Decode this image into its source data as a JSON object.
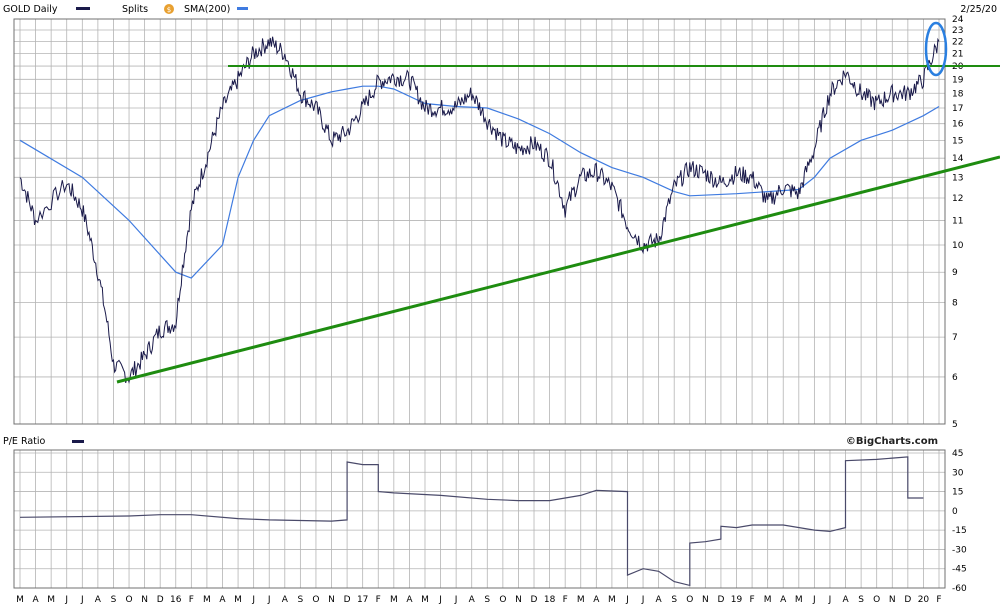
{
  "header": {
    "ticker_label": "GOLD Daily",
    "splits_label": "Splits",
    "splits_icon": "$",
    "sma_label": "SMA(200)",
    "date": "2/25/20"
  },
  "pe_panel": {
    "label": "P/E Ratio",
    "credit": "©BigCharts.com"
  },
  "colors": {
    "price": "#1a1a4a",
    "sma": "#3f7be0",
    "trendline": "#1e8c10",
    "highlight": "#2a7fe0",
    "grid": "#b4b4b4",
    "pe": "#4a4a6a"
  },
  "chart_data": [
    {
      "type": "line",
      "title": "GOLD Daily",
      "yscale": "log",
      "ylim": [
        5,
        24
      ],
      "y_ticks": [
        24,
        23,
        22,
        21,
        20,
        19,
        18,
        17,
        16,
        15,
        14,
        13,
        12,
        11,
        10,
        9,
        8,
        7,
        6,
        5
      ],
      "x_ticks": [
        "M",
        "A",
        "M",
        "J",
        "J",
        "A",
        "S",
        "O",
        "N",
        "D",
        "16",
        "F",
        "M",
        "A",
        "M",
        "J",
        "J",
        "A",
        "S",
        "O",
        "N",
        "D",
        "17",
        "F",
        "M",
        "A",
        "M",
        "J",
        "J",
        "A",
        "S",
        "O",
        "N",
        "D",
        "18",
        "F",
        "M",
        "A",
        "M",
        "J",
        "J",
        "A",
        "S",
        "O",
        "N",
        "D",
        "19",
        "F",
        "M",
        "A",
        "M",
        "J",
        "J",
        "A",
        "S",
        "O",
        "N",
        "D",
        "20",
        "F"
      ],
      "grid": true,
      "series": [
        {
          "name": "GOLD Daily",
          "points": [
            [
              0,
              13
            ],
            [
              1,
              11
            ],
            [
              3,
              12.7
            ],
            [
              4,
              11.5
            ],
            [
              5,
              9
            ],
            [
              6,
              6.3
            ],
            [
              7,
              6
            ],
            [
              8,
              6.5
            ],
            [
              9,
              7.2
            ],
            [
              10,
              7.4
            ],
            [
              11,
              11.5
            ],
            [
              12,
              14
            ],
            [
              13,
              17
            ],
            [
              14,
              19
            ],
            [
              15,
              21
            ],
            [
              16,
              22
            ],
            [
              17,
              21
            ],
            [
              18,
              18
            ],
            [
              19,
              17
            ],
            [
              20,
              15
            ],
            [
              21,
              15.5
            ],
            [
              22,
              17
            ],
            [
              23,
              18.8
            ],
            [
              24,
              19.2
            ],
            [
              25,
              19
            ],
            [
              26,
              17
            ],
            [
              27,
              17
            ],
            [
              28,
              17.1
            ],
            [
              29,
              18
            ],
            [
              30,
              16.2
            ],
            [
              31,
              15
            ],
            [
              32,
              14.5
            ],
            [
              33,
              14.8
            ],
            [
              34,
              14
            ],
            [
              35,
              11.5
            ],
            [
              36,
              13
            ],
            [
              37,
              13.3
            ],
            [
              38,
              12.5
            ],
            [
              39,
              10.8
            ],
            [
              40,
              10
            ],
            [
              41,
              10.2
            ],
            [
              42,
              12.5
            ],
            [
              43,
              13.5
            ],
            [
              44,
              13.2
            ],
            [
              45,
              12.7
            ],
            [
              46,
              13.2
            ],
            [
              47,
              13
            ],
            [
              48,
              11.8
            ],
            [
              49,
              12.5
            ],
            [
              50,
              12.2
            ],
            [
              51,
              14.5
            ],
            [
              52,
              18
            ],
            [
              53,
              19.5
            ],
            [
              54,
              18
            ],
            [
              55,
              17.3
            ],
            [
              56,
              18
            ],
            [
              57,
              18
            ],
            [
              58,
              19
            ],
            [
              59,
              22
            ]
          ]
        },
        {
          "name": "SMA(200)",
          "points": [
            [
              0,
              15
            ],
            [
              4,
              13
            ],
            [
              7,
              11
            ],
            [
              10,
              9
            ],
            [
              11,
              8.8
            ],
            [
              13,
              10
            ],
            [
              14,
              13
            ],
            [
              15,
              15
            ],
            [
              16,
              16.5
            ],
            [
              18,
              17.5
            ],
            [
              20,
              18.1
            ],
            [
              21,
              18.3
            ],
            [
              22,
              18.5
            ],
            [
              23,
              18.5
            ],
            [
              24,
              18.3
            ],
            [
              26,
              17.3
            ],
            [
              28,
              17.1
            ],
            [
              30,
              17
            ],
            [
              32,
              16.3
            ],
            [
              34,
              15.4
            ],
            [
              36,
              14.3
            ],
            [
              38,
              13.5
            ],
            [
              40,
              13
            ],
            [
              42,
              12.3
            ],
            [
              43,
              12.1
            ],
            [
              46,
              12.2
            ],
            [
              48,
              12.3
            ],
            [
              50,
              12.4
            ],
            [
              51,
              13
            ],
            [
              52,
              14
            ],
            [
              54,
              15
            ],
            [
              56,
              15.6
            ],
            [
              58,
              16.5
            ],
            [
              59,
              17.1
            ]
          ]
        }
      ]
    },
    {
      "type": "line",
      "title": "P/E Ratio",
      "ylim": [
        -60,
        45
      ],
      "y_ticks": [
        45,
        30,
        15,
        0,
        -15,
        -30,
        -45,
        -60
      ],
      "grid": true,
      "series": [
        {
          "name": "P/E Ratio",
          "points": [
            [
              0,
              -5
            ],
            [
              7,
              -4
            ],
            [
              9,
              -3
            ],
            [
              11,
              -3
            ],
            [
              14,
              -6
            ],
            [
              16,
              -7
            ],
            [
              20,
              -8
            ],
            [
              21,
              -7
            ],
            [
              21,
              38
            ],
            [
              22,
              36
            ],
            [
              23,
              36
            ],
            [
              23,
              15
            ],
            [
              24,
              14
            ],
            [
              27,
              12
            ],
            [
              30,
              9
            ],
            [
              32,
              8
            ],
            [
              34,
              8
            ],
            [
              36,
              12
            ],
            [
              37,
              16
            ],
            [
              39,
              15
            ],
            [
              39,
              -50
            ],
            [
              40,
              -45
            ],
            [
              41,
              -47
            ],
            [
              42,
              -55
            ],
            [
              43,
              -58
            ],
            [
              43,
              -25
            ],
            [
              44,
              -24
            ],
            [
              45,
              -22
            ],
            [
              45,
              -12
            ],
            [
              46,
              -13
            ],
            [
              47,
              -11
            ],
            [
              49,
              -11
            ],
            [
              51,
              -15
            ],
            [
              52,
              -16
            ],
            [
              53,
              -13
            ],
            [
              53,
              39
            ],
            [
              55,
              40
            ],
            [
              56,
              41
            ],
            [
              57,
              42
            ],
            [
              57,
              10
            ],
            [
              58,
              10
            ]
          ]
        }
      ]
    }
  ]
}
